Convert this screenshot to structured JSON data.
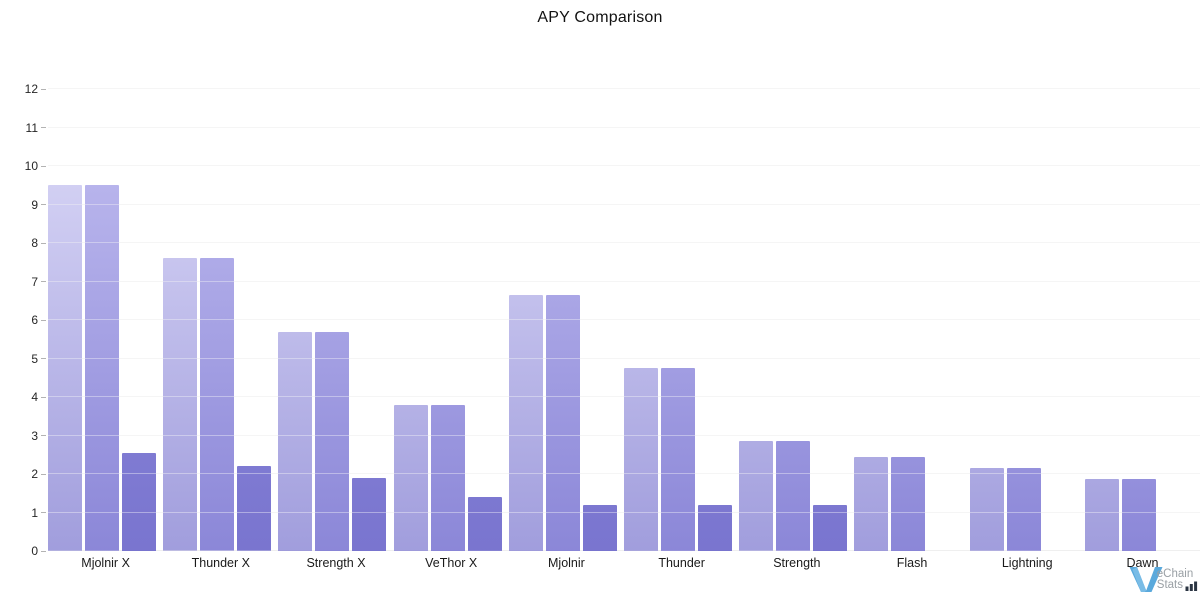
{
  "chart_data": {
    "type": "bar",
    "title": "APY Comparison",
    "categories": [
      "Mjolnir X",
      "Thunder X",
      "Strength X",
      "VeThor X",
      "Mjolnir",
      "Thunder",
      "Strength",
      "Flash",
      "Lightning",
      "Dawn"
    ],
    "series": [
      {
        "name": "apy-bar-1",
        "color_top": "#d4d1f5",
        "color_bottom": "#a19ddd",
        "values": [
          9.5,
          7.6,
          5.7,
          3.8,
          6.65,
          4.75,
          2.85,
          2.45,
          2.15,
          1.87
        ]
      },
      {
        "name": "apy-bar-2",
        "color_top": "#b8b4ec",
        "color_bottom": "#8b87d8",
        "values": [
          9.5,
          7.6,
          5.7,
          3.8,
          6.65,
          4.75,
          2.85,
          2.45,
          2.15,
          1.87
        ]
      },
      {
        "name": "apy-bar-3",
        "color_top": "#8a86d6",
        "color_bottom": "#7c78d0",
        "values": [
          2.55,
          2.2,
          1.9,
          1.4,
          1.2,
          1.2,
          1.2,
          null,
          null,
          null
        ]
      }
    ],
    "xlabel": "",
    "ylabel": "",
    "ylim": [
      0,
      12
    ],
    "yticks": [
      0,
      1,
      2,
      3,
      4,
      5,
      6,
      7,
      8,
      9,
      10,
      11,
      12
    ],
    "grid": true,
    "legend": false
  },
  "axis": {
    "gridline_color": "#efefef",
    "tick_color": "#b3b3b3",
    "label_color": "#262626"
  },
  "watermark": {
    "v_letter": "V",
    "line1": "eChain",
    "line2": "Stats",
    "v_color": "#5aa9dc",
    "text_color": "#9aa0a5",
    "bars_icon_color": "#2a3442"
  }
}
